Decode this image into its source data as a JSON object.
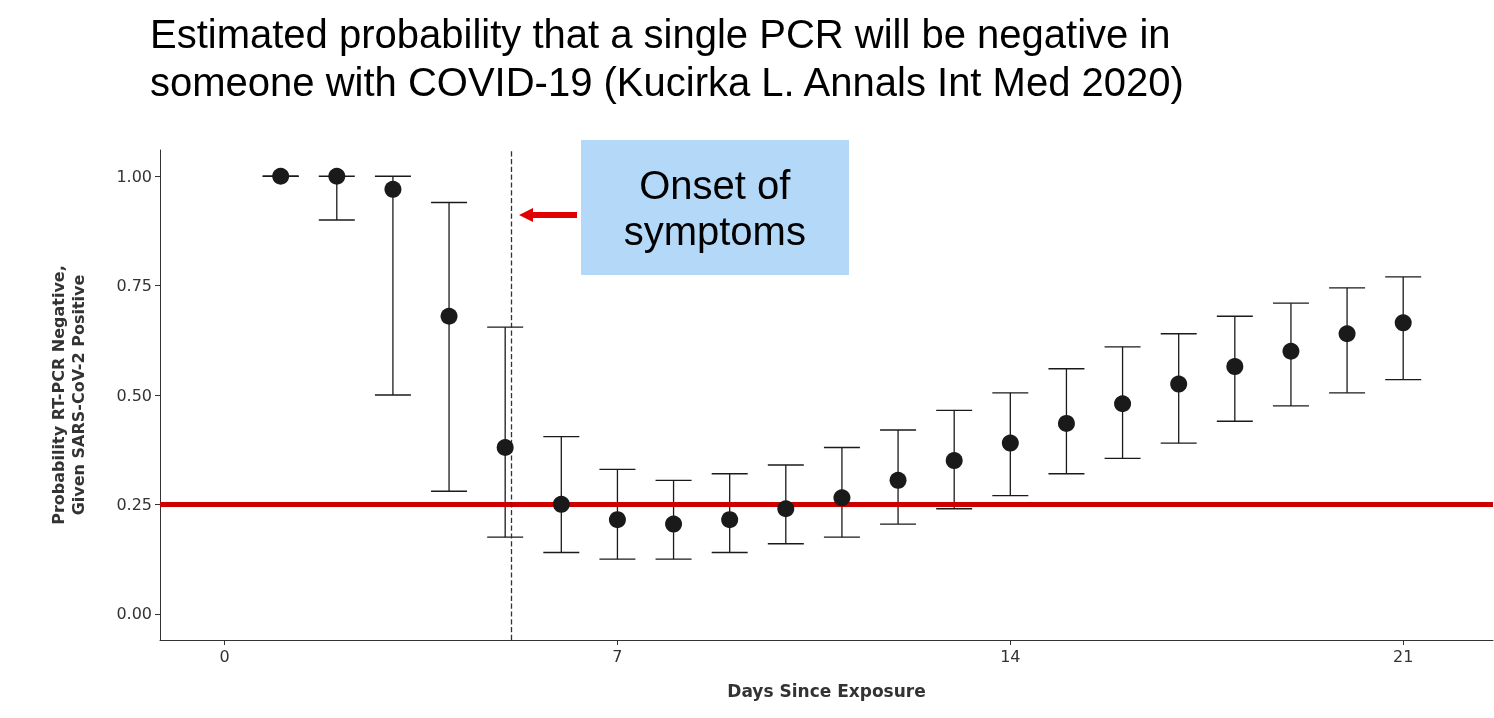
{
  "chart_data": {
    "type": "scatter",
    "title": "Estimated probability that a single PCR will be negative in someone with COVID-19 (Kucirka L.  Annals Int Med 2020)",
    "xlabel": "Days Since Exposure",
    "ylabel": "Probability RT-PCR Negative,\nGiven SARS-CoV-2 Positive",
    "x": [
      1,
      2,
      3,
      4,
      5,
      6,
      7,
      8,
      9,
      10,
      11,
      12,
      13,
      14,
      15,
      16,
      17,
      18,
      19,
      20,
      21
    ],
    "series": [
      {
        "color": "#1a1a1a",
        "values": [
          1.0,
          1.0,
          0.97,
          0.68,
          0.38,
          0.25,
          0.215,
          0.205,
          0.215,
          0.24,
          0.265,
          0.305,
          0.35,
          0.39,
          0.435,
          0.48,
          0.525,
          0.565,
          0.6,
          0.64,
          0.665
        ],
        "errors": [
          [
            1.0,
            1.0
          ],
          [
            0.9,
            1.0
          ],
          [
            0.5,
            1.0
          ],
          [
            0.28,
            0.94
          ],
          [
            0.175,
            0.655
          ],
          [
            0.14,
            0.405
          ],
          [
            0.125,
            0.33
          ],
          [
            0.125,
            0.305
          ],
          [
            0.14,
            0.32
          ],
          [
            0.16,
            0.34
          ],
          [
            0.175,
            0.38
          ],
          [
            0.205,
            0.42
          ],
          [
            0.24,
            0.465
          ],
          [
            0.27,
            0.505
          ],
          [
            0.32,
            0.56
          ],
          [
            0.355,
            0.61
          ],
          [
            0.39,
            0.64
          ],
          [
            0.44,
            0.68
          ],
          [
            0.475,
            0.71
          ],
          [
            0.505,
            0.745
          ],
          [
            0.535,
            0.77
          ]
        ]
      }
    ],
    "marker": "circle",
    "xlim": [
      -1.15,
      22.6
    ],
    "ylim": [
      -0.06,
      1.06
    ],
    "xticks": [
      0,
      7,
      14,
      21
    ],
    "yticks": [
      {
        "value": 0,
        "label": "0.00"
      },
      {
        "value": 0.25,
        "label": "0.25"
      },
      {
        "value": 0.5,
        "label": "0.50"
      },
      {
        "value": 0.75,
        "label": "0.75"
      },
      {
        "value": 1,
        "label": "1.00"
      }
    ],
    "grid": false,
    "ref_lines": [
      {
        "axis": "y",
        "value": 0.25,
        "color": "#cc0000",
        "line_style": "solid"
      },
      {
        "axis": "x",
        "value": 5.1,
        "color": "#333333",
        "line_style": "dashed",
        "label": "Onset of\nsymptoms"
      }
    ]
  }
}
